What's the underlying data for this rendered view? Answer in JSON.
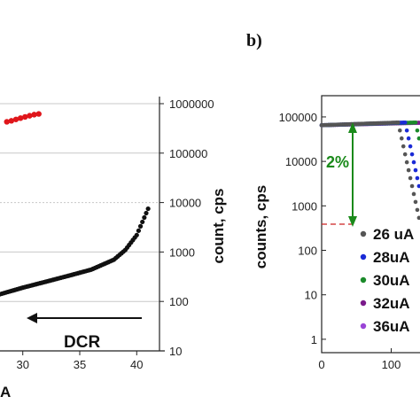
{
  "panel_b_label": "b)",
  "colors": {
    "panel_a_black": "#111111",
    "panel_a_red": "#e0161b",
    "arrow_green": "#1a8a1a",
    "threshold_red": "#cc2222",
    "grid": "#c8c8c8"
  },
  "chart_data": [
    {
      "type": "scatter",
      "panel": "a",
      "xlabel": "A",
      "ylabel": "count, cps",
      "y_scale": "log",
      "xlim": [
        28,
        42
      ],
      "ylim": [
        10,
        1000000
      ],
      "x_ticks": [
        "30",
        "35",
        "40"
      ],
      "y_ticks": [
        "10",
        "100",
        "1000",
        "10000",
        "100000",
        "1000000"
      ],
      "grid": true,
      "series": [
        {
          "color": "#e0161b",
          "x": [
            28.6,
            29.0,
            29.4,
            29.8,
            30.2,
            30.6,
            31.0,
            31.4
          ],
          "y": [
            430000,
            450000,
            480000,
            510000,
            540000,
            570000,
            600000,
            620000
          ]
        },
        {
          "color": "#111111",
          "x": [
            28.0,
            30.0,
            32.0,
            34.0,
            36.0,
            38.0,
            39.0,
            40.0,
            41.0
          ],
          "y": [
            140,
            190,
            250,
            330,
            440,
            700,
            1100,
            2200,
            7500
          ]
        }
      ],
      "annotation": {
        "text": "DCR"
      }
    },
    {
      "type": "line",
      "panel": "b",
      "ylabel": "counts, cps",
      "y_scale": "log",
      "xlim": [
        0,
        200
      ],
      "ylim": [
        0.5,
        300000
      ],
      "x_ticks": [
        "0",
        "100"
      ],
      "y_ticks": [
        "1",
        "10",
        "100",
        "1000",
        "10000",
        "100000"
      ],
      "threshold": 700,
      "annotation": {
        "text": "2%"
      },
      "series": [
        {
          "name": "26 uA",
          "color": "#555555",
          "knee": 110
        },
        {
          "name": "28uA",
          "color": "#1a2ad6",
          "knee": 120
        },
        {
          "name": "30uA",
          "color": "#1b8a2a",
          "knee": 135
        },
        {
          "name": "32uA",
          "color": "#7a1a8a",
          "knee": 150
        },
        {
          "name": "36uA",
          "color": "#9a44d6",
          "knee": 165
        }
      ],
      "plateau": 65000
    }
  ]
}
